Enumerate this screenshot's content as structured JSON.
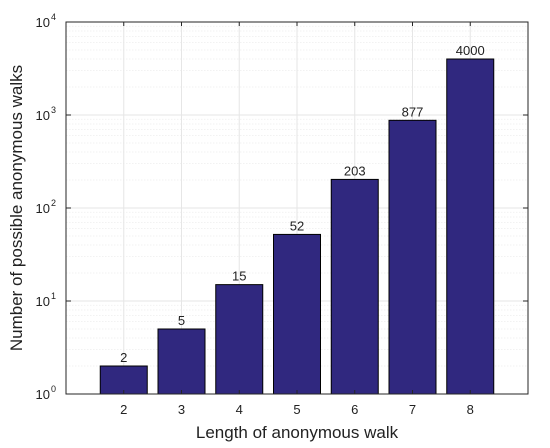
{
  "chart_data": {
    "type": "bar",
    "title": "",
    "xlabel": "Length of anonymous walk",
    "ylabel": "Number of possible anonymous walks",
    "y_scale": "log",
    "ylim": [
      1,
      10000
    ],
    "grid": true,
    "categories": [
      "2",
      "3",
      "4",
      "5",
      "6",
      "7",
      "8"
    ],
    "values": [
      2,
      5,
      15,
      52,
      203,
      877,
      4000
    ],
    "data_labels": [
      "2",
      "5",
      "15",
      "52",
      "203",
      "877",
      "4000"
    ],
    "y_ticks": [
      {
        "base": "10",
        "exp": "0"
      },
      {
        "base": "10",
        "exp": "1"
      },
      {
        "base": "10",
        "exp": "2"
      },
      {
        "base": "10",
        "exp": "3"
      },
      {
        "base": "10",
        "exp": "4"
      }
    ],
    "colors": {
      "bar_fill": "#30287f",
      "bar_stroke": "#000000",
      "grid": "#e6e6e6",
      "grid_minor": "#eeeeee",
      "axis": "#262626"
    }
  }
}
